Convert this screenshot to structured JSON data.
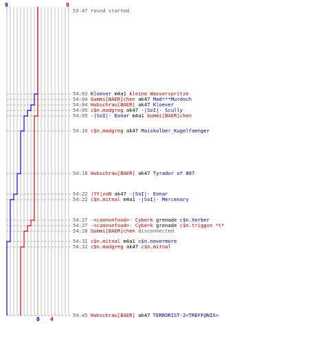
{
  "header": {
    "blue_start": "9",
    "red_start": "9"
  },
  "footer": {
    "blue_end": "0",
    "red_end": "4"
  },
  "colors": {
    "blue": "#0000cc",
    "red": "#cc0000",
    "grid": "#b0b0b0"
  },
  "events": [
    {
      "time": "53:47",
      "a": "",
      "a_team": "sys",
      "w": "round started",
      "v": "",
      "v_team": "sys"
    },
    {
      "time": "54:03",
      "a": "Kloever",
      "a_team": "blue",
      "w": "m4a1",
      "v": "kleine Wasserspritze",
      "v_team": "red"
    },
    {
      "time": "54:04",
      "a": "Gummi[BAER]chen",
      "a_team": "red",
      "w": "ak47",
      "v": "Mad***Murdoch",
      "v_team": "blue"
    },
    {
      "time": "54:04",
      "a": "Hubschrau[BAER]",
      "a_team": "red",
      "w": "ak47",
      "v": "Kloever",
      "v_team": "blue"
    },
    {
      "time": "54:05",
      "a": "c$n.madgreg",
      "a_team": "red",
      "w": "ak47",
      "v": "-|SoI|- Scully",
      "v_team": "blue"
    },
    {
      "time": "54:05",
      "a": "-|SoI|- Eonar",
      "a_team": "blue",
      "w": "m4a1",
      "v": "Gummi[BAER]chen",
      "v_team": "red"
    },
    {
      "time": "54:10",
      "a": "c$n.madgreg",
      "a_team": "red",
      "w": "ak47",
      "v": "Maiskolber_Kugelfaenger",
      "v_team": "blue"
    },
    {
      "time": "54:18",
      "a": "Hubschrau[BAER]",
      "a_team": "red",
      "w": "ak47",
      "v": "Tyrador of 807",
      "v_team": "blue"
    },
    {
      "time": "54:22",
      "a": "|YY|zoN",
      "a_team": "red",
      "w": "ak47",
      "v": "-|SoI|- Eonar",
      "v_team": "blue"
    },
    {
      "time": "54:22",
      "a": "c$n.mitnal",
      "a_team": "red",
      "w": "m4a1",
      "v": "-|SoI|- Mercenary",
      "v_team": "blue"
    },
    {
      "time": "54:27",
      "a": "-=cannonfood=- Cyberk",
      "a_team": "red",
      "w": "grenade",
      "v": "c$n.Xerber",
      "v_team": "blue"
    },
    {
      "time": "54:27",
      "a": "-=cannonfood=- Cyberk",
      "a_team": "red",
      "w": "grenade",
      "v": "c$n.triggon *t*",
      "v_team": "red"
    },
    {
      "time": "54:28",
      "a": "Gummi[BAER]chen",
      "a_team": "red",
      "w": "disconnected",
      "v": "",
      "v_team": "sys"
    },
    {
      "time": "54:31",
      "a": "c$n.mitnal",
      "a_team": "red",
      "w": "m4a1",
      "v": "c$n.nevermore",
      "v_team": "blue"
    },
    {
      "time": "54:32",
      "a": "c$n.madgreg",
      "a_team": "red",
      "w": "ak47",
      "v": "c$n.mitnal",
      "v_team": "red"
    },
    {
      "time": "54:45",
      "a": "Hubschrau[BAER]",
      "a_team": "red",
      "w": "ak47",
      "v": "TERRORIST-2<TREFF@NIX>",
      "v_team": "blue"
    }
  ],
  "chart_data": {
    "type": "line",
    "x_label": "",
    "y_label": "",
    "times": [
      "53:47",
      "54:03",
      "54:04",
      "54:04",
      "54:05",
      "54:05",
      "54:10",
      "54:18",
      "54:22",
      "54:22",
      "54:27",
      "54:27",
      "54:28",
      "54:31",
      "54:32",
      "54:45"
    ],
    "series": [
      {
        "color": "#0000cc",
        "values": [
          9,
          8,
          8,
          7,
          6,
          5,
          4,
          3,
          2,
          1,
          1,
          1,
          1,
          0,
          0,
          0
        ]
      },
      {
        "color": "#cc0000",
        "values": [
          9,
          9,
          9,
          9,
          9,
          8,
          8,
          8,
          8,
          8,
          7,
          6,
          5,
          5,
          4,
          4
        ]
      }
    ],
    "ylim": [
      0,
      9
    ]
  }
}
